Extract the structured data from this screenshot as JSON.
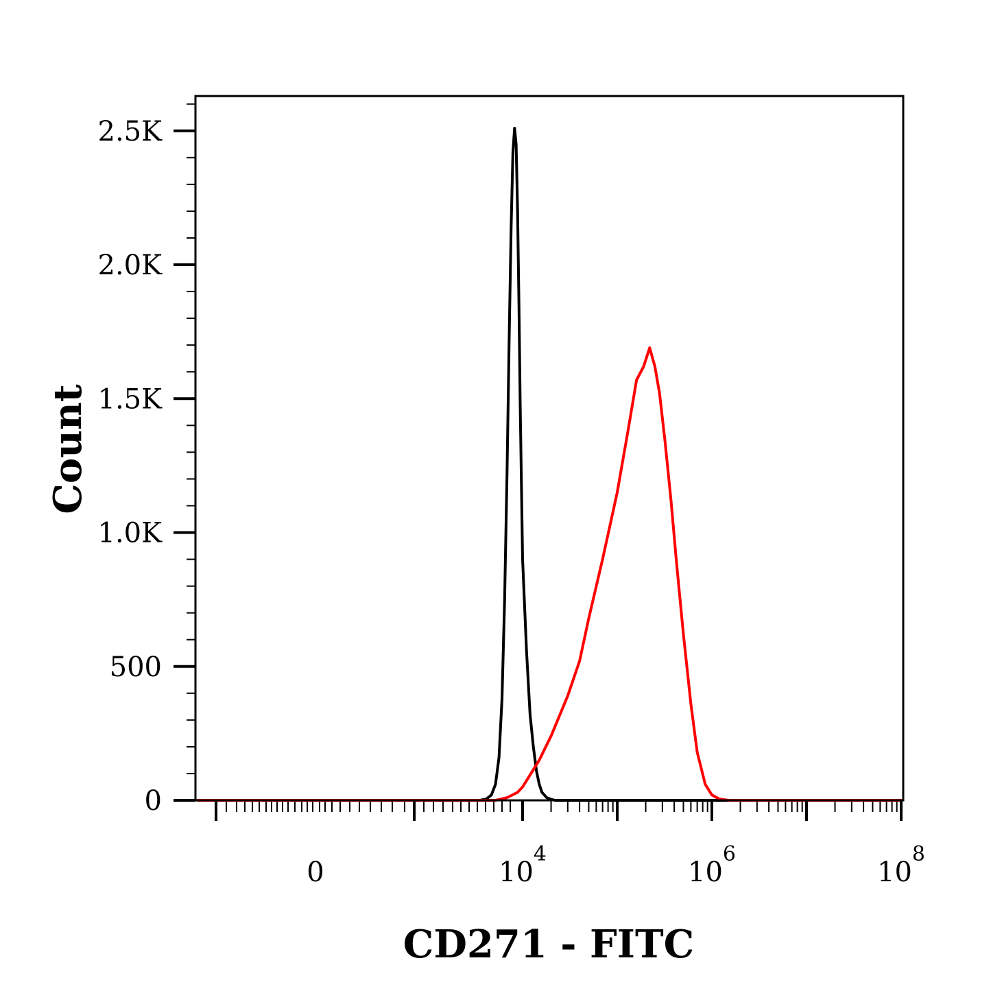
{
  "chart_data": {
    "type": "line",
    "title": "",
    "xlabel": "CD271 - FITC",
    "ylabel": "Count",
    "xscale": "biexponential",
    "x_tick_labels": [
      {
        "value": 0,
        "base": "0",
        "exp": ""
      },
      {
        "value": 10000,
        "base": "10",
        "exp": "4"
      },
      {
        "value": 1000000,
        "base": "10",
        "exp": "6"
      },
      {
        "value": 100000000,
        "base": "10",
        "exp": "8"
      }
    ],
    "y_tick_labels": [
      {
        "value": 0,
        "label": "0"
      },
      {
        "value": 500,
        "label": "500"
      },
      {
        "value": 1000,
        "label": "1.0K"
      },
      {
        "value": 1500,
        "label": "1.5K"
      },
      {
        "value": 2000,
        "label": "2.0K"
      },
      {
        "value": 2500,
        "label": "2.5K"
      }
    ],
    "ylim": [
      0,
      2630
    ],
    "grid": false,
    "legend": "none",
    "series": [
      {
        "color": "#000000",
        "x": [
          1500,
          2000,
          2500,
          3000,
          3500,
          4000,
          4500,
          5000,
          5500,
          6000,
          6500,
          7000,
          7500,
          8000,
          8500,
          9000,
          10000,
          11000,
          12000,
          13000,
          14000,
          15000,
          16000,
          18000,
          20000,
          22000,
          25000
        ],
        "y": [
          0,
          5,
          20,
          60,
          160,
          380,
          750,
          1220,
          1720,
          2140,
          2420,
          2510,
          2450,
          2200,
          1850,
          1480,
          900,
          560,
          320,
          200,
          110,
          60,
          30,
          10,
          4,
          0,
          0
        ]
      },
      {
        "color": "#ff0000",
        "x": [
          3000,
          5000,
          8000,
          10000,
          15000,
          20000,
          30000,
          40000,
          50000,
          70000,
          100000,
          130000,
          160000,
          190000,
          220000,
          250000,
          280000,
          320000,
          370000,
          420000,
          500000,
          600000,
          700000,
          850000,
          1000000,
          1200000,
          1500000,
          2000000
        ],
        "y": [
          0,
          10,
          30,
          50,
          150,
          240,
          390,
          520,
          680,
          900,
          1150,
          1380,
          1570,
          1620,
          1690,
          1620,
          1520,
          1340,
          1120,
          900,
          620,
          360,
          180,
          60,
          20,
          5,
          0,
          0
        ]
      }
    ]
  }
}
